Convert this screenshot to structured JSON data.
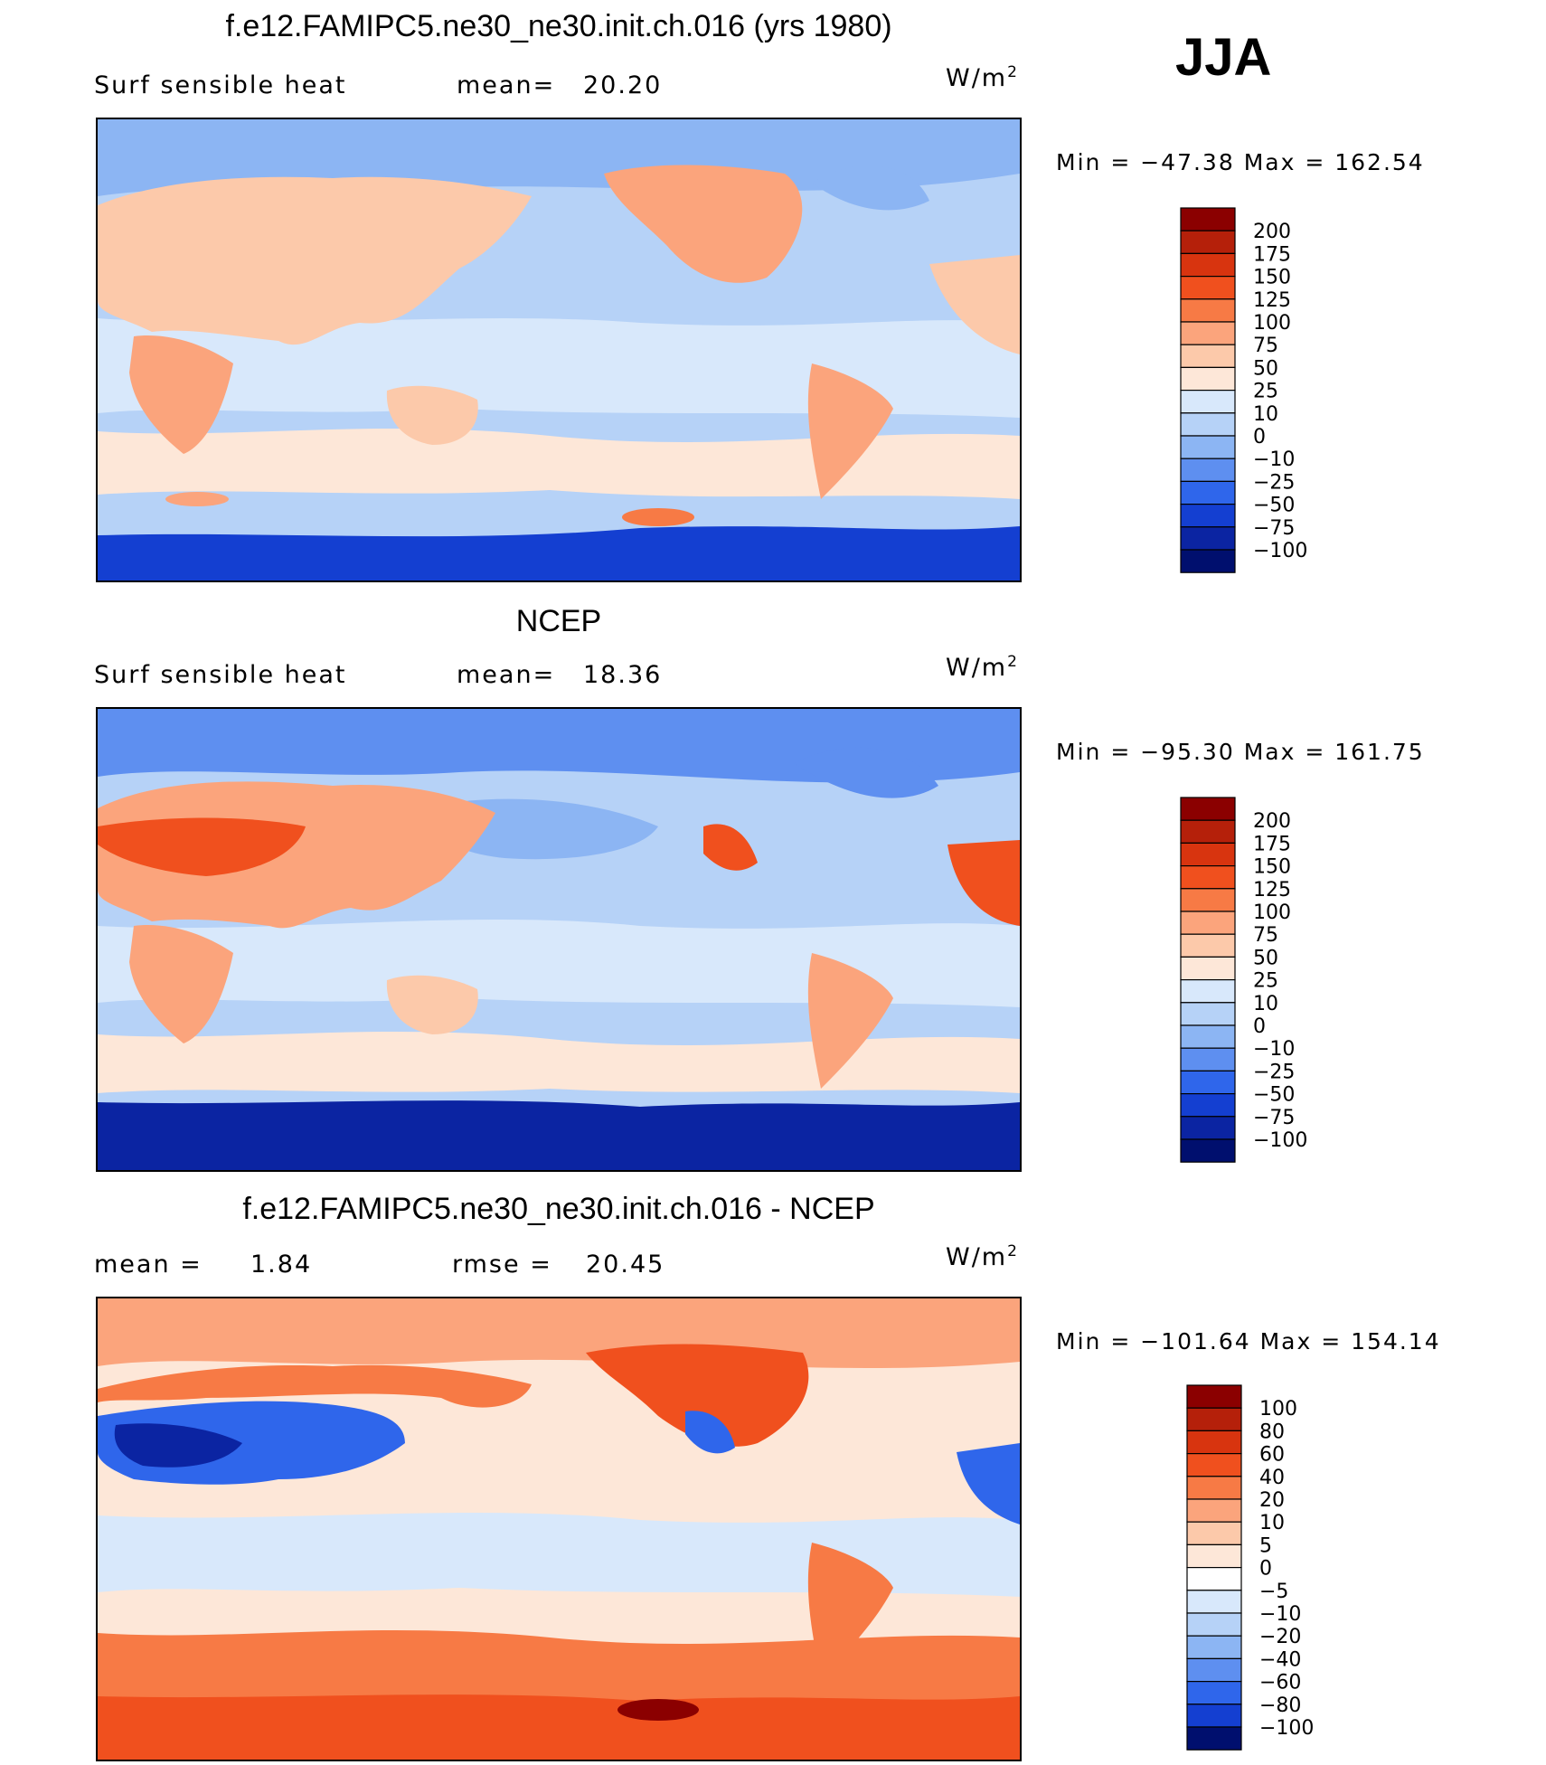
{
  "season": "JJA",
  "panels": [
    {
      "title": "f.e12.FAMIPC5.ne30_ne30.init.ch.016 (yrs 1980)",
      "left_text": "Surf sensible heat",
      "stat1_label": "mean=",
      "stat1_value": "20.20",
      "stat2_label": "",
      "stat2_value": "",
      "units": "W/m",
      "units_sup": "2",
      "min_label": "Min",
      "min_value": "−47.38",
      "max_label": "Max",
      "max_value": "162.54"
    },
    {
      "title": "NCEP",
      "left_text": "Surf sensible heat",
      "stat1_label": "mean=",
      "stat1_value": "18.36",
      "stat2_label": "",
      "stat2_value": "",
      "units": "W/m",
      "units_sup": "2",
      "min_label": "Min",
      "min_value": "−95.30",
      "max_label": "Max",
      "max_value": "161.75"
    },
    {
      "title": "f.e12.FAMIPC5.ne30_ne30.init.ch.016 - NCEP",
      "left_text": "",
      "stat1_label": "mean =",
      "stat1_value": "1.84",
      "stat2_label": "rmse =",
      "stat2_value": "20.45",
      "units": "W/m",
      "units_sup": "2",
      "min_label": "Min",
      "min_value": "−101.64",
      "max_label": "Max",
      "max_value": "154.14"
    }
  ],
  "chart_data": [
    {
      "type": "heatmap",
      "title": "f.e12.FAMIPC5.ne30_ne30.init.ch.016 (yrs 1980)",
      "variable": "Surf sensible heat",
      "units": "W/m2",
      "mean": 20.2,
      "min": -47.38,
      "max": 162.54,
      "levels": [
        "200",
        "175",
        "150",
        "125",
        "100",
        "75",
        "50",
        "25",
        "10",
        "0",
        "−10",
        "−25",
        "−50",
        "−75",
        "−100"
      ],
      "colors": [
        "#8b0000",
        "#b5200a",
        "#d8340f",
        "#f0501e",
        "#f77a45",
        "#fba47c",
        "#fcc9aa",
        "#fde7d8",
        "#d8e8fb",
        "#b6d2f7",
        "#8cb5f3",
        "#5e8ff0",
        "#2f66eb",
        "#143fd1",
        "#0b24a2",
        "#000f6e"
      ]
    },
    {
      "type": "heatmap",
      "title": "NCEP",
      "variable": "Surf sensible heat",
      "units": "W/m2",
      "mean": 18.36,
      "min": -95.3,
      "max": 161.75,
      "levels": [
        "200",
        "175",
        "150",
        "125",
        "100",
        "75",
        "50",
        "25",
        "10",
        "0",
        "−10",
        "−25",
        "−50",
        "−75",
        "−100"
      ],
      "colors": [
        "#8b0000",
        "#b5200a",
        "#d8340f",
        "#f0501e",
        "#f77a45",
        "#fba47c",
        "#fcc9aa",
        "#fde7d8",
        "#d8e8fb",
        "#b6d2f7",
        "#8cb5f3",
        "#5e8ff0",
        "#2f66eb",
        "#143fd1",
        "#0b24a2",
        "#000f6e"
      ]
    },
    {
      "type": "heatmap",
      "title": "f.e12.FAMIPC5.ne30_ne30.init.ch.016 - NCEP",
      "units": "W/m2",
      "mean": 1.84,
      "rmse": 20.45,
      "min": -101.64,
      "max": 154.14,
      "levels": [
        "100",
        "80",
        "60",
        "40",
        "20",
        "10",
        "5",
        "0",
        "−5",
        "−10",
        "−20",
        "−40",
        "−60",
        "−80",
        "−100"
      ],
      "colors": [
        "#8b0000",
        "#b5200a",
        "#d8340f",
        "#f0501e",
        "#f77a45",
        "#fba47c",
        "#fcc9aa",
        "#fde7d8",
        "#ffffff",
        "#d8e8fb",
        "#b6d2f7",
        "#8cb5f3",
        "#5e8ff0",
        "#2f66eb",
        "#143fd1",
        "#000f6e"
      ]
    }
  ]
}
